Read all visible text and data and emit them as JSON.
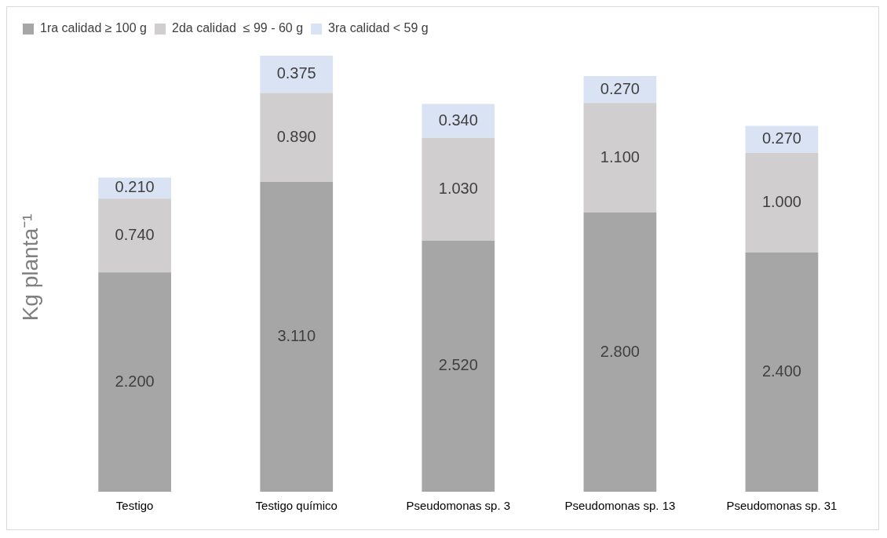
{
  "chart_data": {
    "type": "bar",
    "stacked": true,
    "ylabel": "Kg planta⁻¹",
    "legend": "top left",
    "grid": false,
    "categories": [
      "Testigo",
      "Testigo químico",
      "Pseudomonas sp. 3",
      "Pseudomonas sp. 13",
      "Pseudomonas sp. 31"
    ],
    "series": [
      {
        "name": "1ra calidad ≥ 100 g",
        "color": "#a6a6a6",
        "values": [
          2.2,
          3.11,
          2.52,
          2.8,
          2.4
        ],
        "value_labels": [
          "2.200",
          "3.110",
          "2.520",
          "2.800",
          "2.400"
        ]
      },
      {
        "name": "2da calidad  ≤ 99 - 60 g",
        "color": "#d0cece",
        "values": [
          0.74,
          0.89,
          1.03,
          1.1,
          1.0
        ],
        "value_labels": [
          "0.740",
          "0.890",
          "1.030",
          "1.100",
          "1.000"
        ]
      },
      {
        "name": "3ra calidad < 59 g",
        "color": "#dae3f3",
        "values": [
          0.21,
          0.375,
          0.34,
          0.27,
          0.27
        ],
        "value_labels": [
          "0.210",
          "0.375",
          "0.340",
          "0.270",
          "0.270"
        ]
      }
    ]
  }
}
